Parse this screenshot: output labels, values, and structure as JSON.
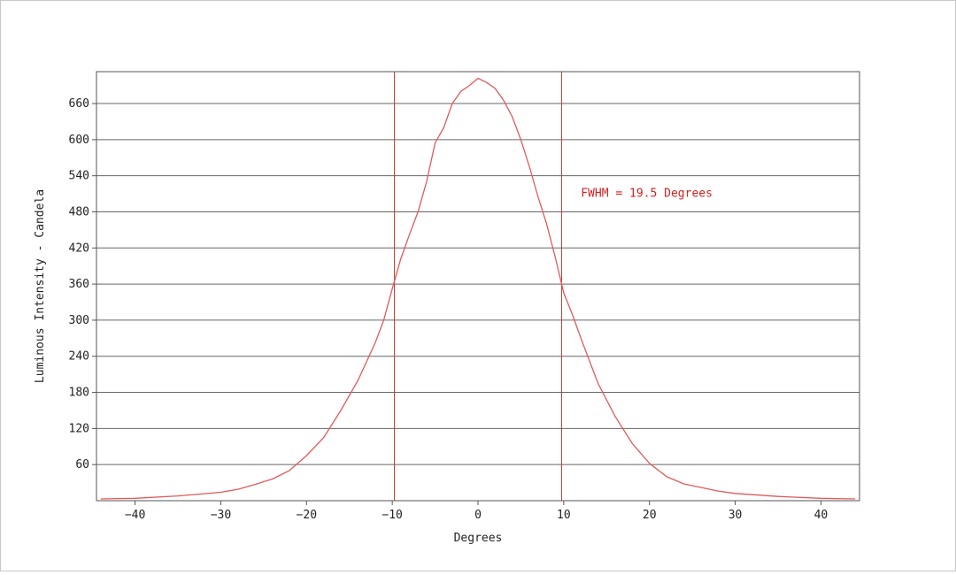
{
  "chart_data": {
    "type": "line",
    "title": "",
    "xlabel": "Degrees",
    "ylabel": "Luminous Intensity - Candela",
    "xlim": [
      -44.5,
      44.5
    ],
    "ylim": [
      0,
      713
    ],
    "x_ticks": [
      -40,
      -30,
      -20,
      -10,
      0,
      10,
      20,
      30,
      40
    ],
    "y_ticks": [
      60,
      120,
      180,
      240,
      300,
      360,
      420,
      480,
      540,
      600,
      660
    ],
    "grid": "horizontal",
    "legend": "none",
    "colors": {
      "series": "#e05a5a",
      "grid": "#666666",
      "axis": "#555555",
      "marker_line": "#c0392b",
      "annotation": "#d62020"
    },
    "series": [
      {
        "x": [
          -44,
          -40,
          -35,
          -30,
          -28,
          -26,
          -24,
          -22,
          -20,
          -18,
          -16,
          -14,
          -12,
          -11,
          -10,
          -9,
          -8,
          -7,
          -6,
          -5,
          -4,
          -3,
          -2,
          -1,
          0,
          1,
          2,
          3,
          4,
          5,
          6,
          7,
          8,
          9,
          10,
          11,
          12,
          14,
          16,
          18,
          20,
          22,
          24,
          26,
          28,
          30,
          35,
          40,
          44
        ],
        "y": [
          3,
          4,
          8,
          14,
          19,
          27,
          36,
          50,
          75,
          105,
          150,
          200,
          262,
          300,
          352,
          402,
          442,
          480,
          530,
          595,
          620,
          660,
          680,
          690,
          702,
          695,
          685,
          665,
          638,
          600,
          555,
          505,
          460,
          405,
          345,
          310,
          270,
          195,
          140,
          95,
          62,
          40,
          28,
          22,
          16,
          12,
          7,
          4,
          3
        ]
      }
    ],
    "vertical_markers": [
      -9.75,
      9.75
    ],
    "annotations": [
      {
        "text": "FWHM = 19.5 Degrees",
        "x": 12,
        "y": 505
      }
    ]
  }
}
